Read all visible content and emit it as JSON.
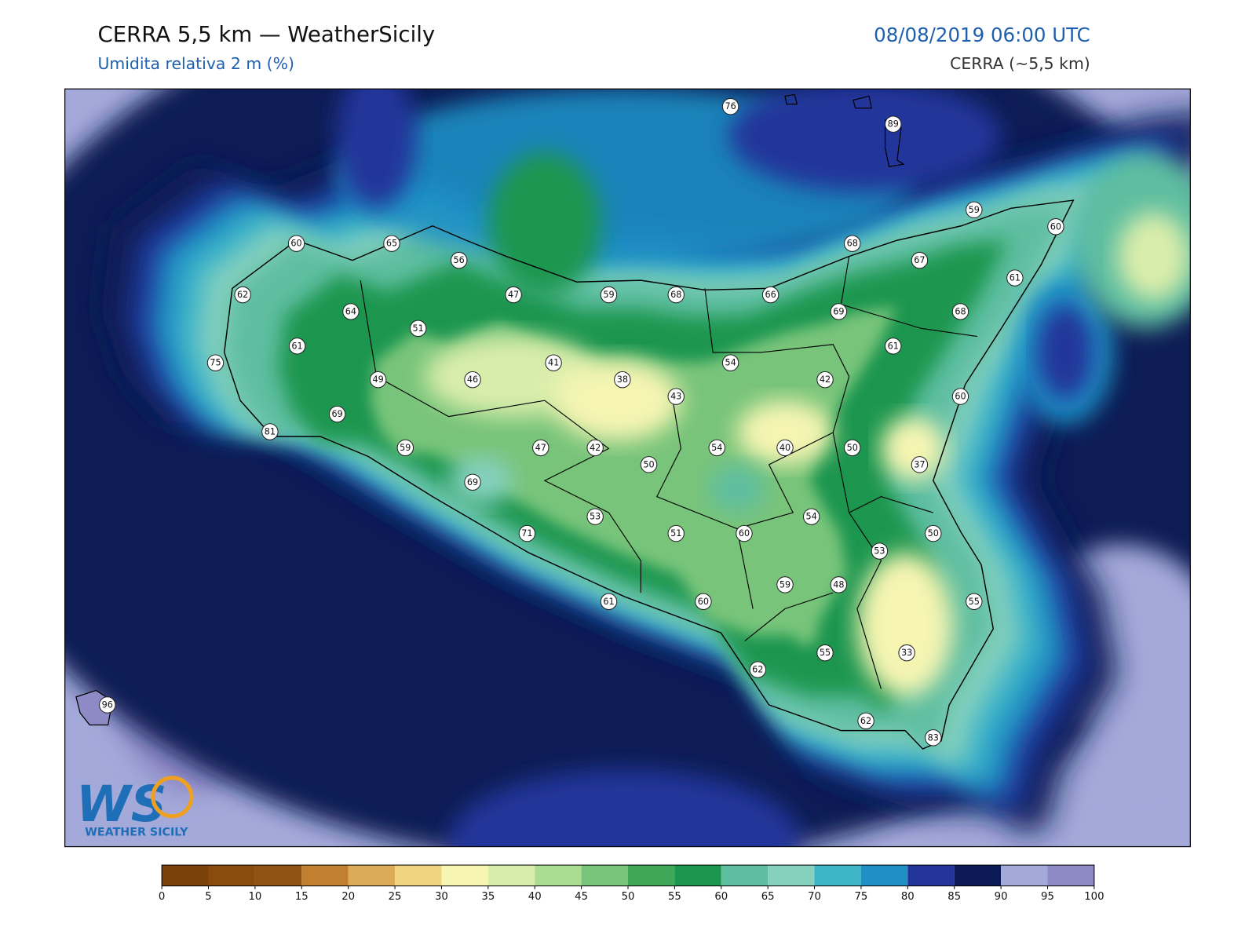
{
  "header": {
    "title": "CERRA 5,5 km — WeatherSicily",
    "subtitle": "Umidita relativa 2 m (%)",
    "datetime": "08/08/2019 06:00 UTC",
    "model": "CERRA (~5,5 km)"
  },
  "stations": [
    76,
    89,
    60,
    65,
    56,
    62,
    64,
    47,
    59,
    68,
    66,
    68,
    67,
    59,
    60,
    61,
    69,
    68,
    51,
    61,
    75,
    49,
    46,
    41,
    38,
    43,
    54,
    42,
    61,
    60,
    69,
    81,
    59,
    47,
    42,
    50,
    54,
    40,
    50,
    37,
    69,
    53,
    51,
    60,
    54,
    50,
    71,
    53,
    59,
    48,
    55,
    61,
    60,
    55,
    33,
    62,
    62,
    83,
    96
  ],
  "colorbar": {
    "ticks": [
      0,
      5,
      10,
      15,
      20,
      25,
      30,
      35,
      40,
      45,
      50,
      55,
      60,
      65,
      70,
      75,
      80,
      85,
      90,
      95,
      100
    ],
    "colors": [
      "#7a4108",
      "#8a4c0c",
      "#8f5212",
      "#c0802f",
      "#dcab5a",
      "#f0d37f",
      "#f6f5b2",
      "#d9edab",
      "#aadd8f",
      "#78c47a",
      "#3fa858",
      "#1a9650",
      "#5ebea0",
      "#85d0bf",
      "#3db4c8",
      "#1f8fc4",
      "#24359a",
      "#0c1b55",
      "#a3a9d9",
      "#8e8ac6"
    ]
  },
  "logo": {
    "mark": "WS",
    "text": "WEATHER SICILY"
  }
}
